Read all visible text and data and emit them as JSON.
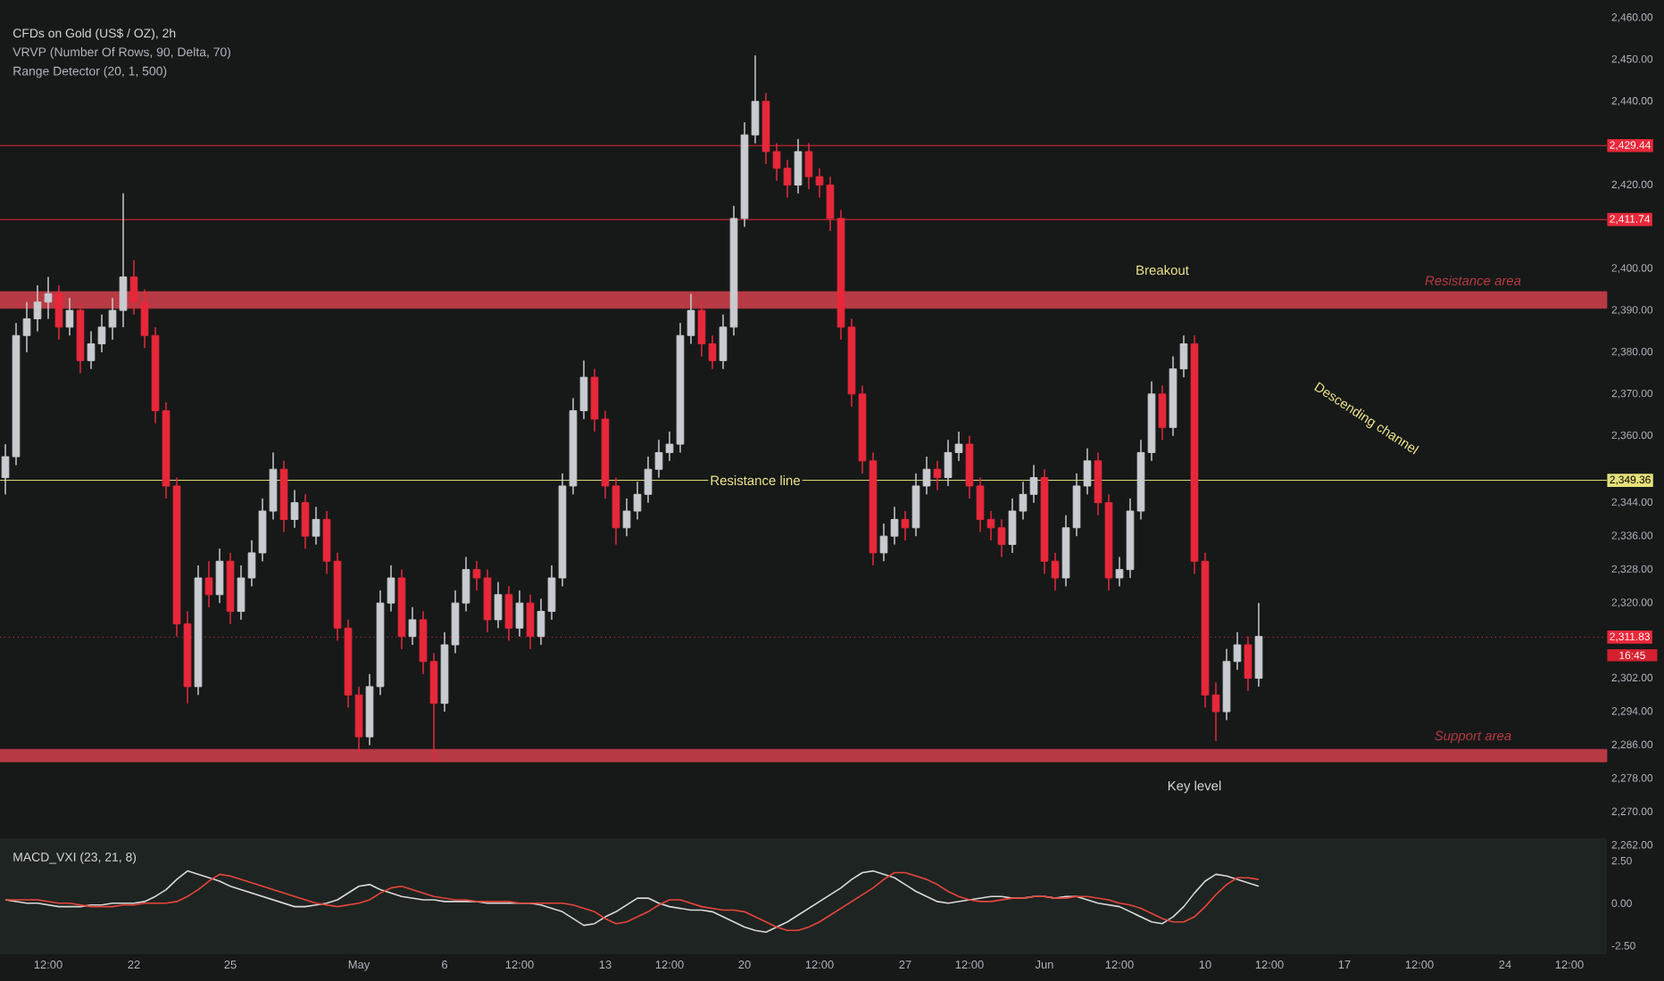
{
  "chart_data": [
    {
      "type": "candlestick",
      "title": "CFDs on Gold (US$ / OZ), 2h",
      "subtitle": "VRVP (Number Of Rows, 90, Delta, 70)",
      "categories": [
        null,
        null,
        null,
        null,
        "12:00",
        null,
        null,
        null,
        null,
        null,
        null,
        null,
        "22",
        null,
        null,
        null,
        null,
        null,
        null,
        null,
        null,
        "25",
        null,
        null,
        null,
        null,
        null,
        null,
        null,
        null,
        null,
        null,
        null,
        "May",
        null,
        null,
        null,
        null,
        null,
        null,
        null,
        "6",
        null,
        null,
        null,
        null,
        null,
        null,
        "12:00",
        null,
        null,
        null,
        null,
        null,
        null,
        null,
        "13",
        null,
        null,
        null,
        null,
        null,
        "12:00",
        null,
        null,
        null,
        null,
        null,
        null,
        "20",
        null,
        null,
        null,
        null,
        null,
        null,
        "12:00",
        null,
        null,
        null,
        null,
        null,
        null,
        null,
        "27",
        null,
        null,
        null,
        null,
        null,
        "12:00",
        null,
        null,
        null,
        null,
        null,
        null,
        "Jun",
        null,
        null,
        null,
        null,
        null,
        null,
        "12:00",
        null,
        null,
        null,
        null,
        null,
        null,
        null,
        "10",
        null,
        null,
        null,
        null,
        null,
        "12:00",
        null,
        null,
        null,
        null,
        null,
        null,
        "17",
        null,
        null,
        null,
        null,
        null,
        null,
        "12:00",
        null,
        null,
        null,
        null,
        null,
        null,
        null,
        "24",
        null,
        null,
        null,
        null,
        null,
        "12:00",
        null,
        null,
        null
      ],
      "ohlc": [
        [
          2350,
          2358,
          2346,
          2355
        ],
        [
          2355,
          2387,
          2353,
          2384
        ],
        [
          2384,
          2392,
          2380,
          2388
        ],
        [
          2388,
          2396,
          2385,
          2392
        ],
        [
          2392,
          2398,
          2388,
          2394
        ],
        [
          2394,
          2396,
          2383,
          2386
        ],
        [
          2386,
          2393,
          2384,
          2390
        ],
        [
          2390,
          2392,
          2375,
          2378
        ],
        [
          2378,
          2385,
          2376,
          2382
        ],
        [
          2382,
          2389,
          2380,
          2386
        ],
        [
          2386,
          2393,
          2383,
          2390
        ],
        [
          2390,
          2418,
          2386,
          2398
        ],
        [
          2398,
          2402,
          2389,
          2392
        ],
        [
          2392,
          2395,
          2381,
          2384
        ],
        [
          2384,
          2386,
          2363,
          2366
        ],
        [
          2366,
          2368,
          2345,
          2348
        ],
        [
          2348,
          2350,
          2312,
          2315
        ],
        [
          2315,
          2318,
          2296,
          2300
        ],
        [
          2300,
          2329,
          2298,
          2326
        ],
        [
          2326,
          2330,
          2319,
          2322
        ],
        [
          2322,
          2333,
          2320,
          2330
        ],
        [
          2330,
          2332,
          2315,
          2318
        ],
        [
          2318,
          2329,
          2316,
          2326
        ],
        [
          2326,
          2335,
          2324,
          2332
        ],
        [
          2332,
          2345,
          2330,
          2342
        ],
        [
          2342,
          2356,
          2340,
          2352
        ],
        [
          2352,
          2354,
          2337,
          2340
        ],
        [
          2340,
          2347,
          2338,
          2344
        ],
        [
          2344,
          2346,
          2333,
          2336
        ],
        [
          2336,
          2343,
          2334,
          2340
        ],
        [
          2340,
          2342,
          2327,
          2330
        ],
        [
          2330,
          2332,
          2311,
          2314
        ],
        [
          2314,
          2316,
          2295,
          2298
        ],
        [
          2298,
          2300,
          2284,
          2288
        ],
        [
          2288,
          2303,
          2286,
          2300
        ],
        [
          2300,
          2323,
          2298,
          2320
        ],
        [
          2320,
          2329,
          2318,
          2326
        ],
        [
          2326,
          2328,
          2309,
          2312
        ],
        [
          2312,
          2319,
          2310,
          2316
        ],
        [
          2316,
          2318,
          2303,
          2306
        ],
        [
          2306,
          2308,
          2282,
          2296
        ],
        [
          2296,
          2313,
          2294,
          2310
        ],
        [
          2310,
          2323,
          2308,
          2320
        ],
        [
          2320,
          2331,
          2318,
          2328
        ],
        [
          2328,
          2330,
          2323,
          2326
        ],
        [
          2326,
          2328,
          2313,
          2316
        ],
        [
          2316,
          2325,
          2314,
          2322
        ],
        [
          2322,
          2324,
          2311,
          2314
        ],
        [
          2314,
          2323,
          2312,
          2320
        ],
        [
          2320,
          2322,
          2309,
          2312
        ],
        [
          2312,
          2321,
          2310,
          2318
        ],
        [
          2318,
          2329,
          2316,
          2326
        ],
        [
          2326,
          2351,
          2324,
          2348
        ],
        [
          2348,
          2369,
          2346,
          2366
        ],
        [
          2366,
          2378,
          2364,
          2374
        ],
        [
          2374,
          2376,
          2361,
          2364
        ],
        [
          2364,
          2366,
          2345,
          2348
        ],
        [
          2348,
          2350,
          2334,
          2338
        ],
        [
          2338,
          2345,
          2336,
          2342
        ],
        [
          2342,
          2349,
          2340,
          2346
        ],
        [
          2346,
          2355,
          2344,
          2352
        ],
        [
          2352,
          2359,
          2350,
          2356
        ],
        [
          2356,
          2361,
          2354,
          2358
        ],
        [
          2358,
          2387,
          2356,
          2384
        ],
        [
          2384,
          2394,
          2382,
          2390
        ],
        [
          2390,
          2392,
          2379,
          2382
        ],
        [
          2382,
          2384,
          2376,
          2378
        ],
        [
          2378,
          2389,
          2376,
          2386
        ],
        [
          2386,
          2415,
          2384,
          2412
        ],
        [
          2412,
          2435,
          2410,
          2432
        ],
        [
          2432,
          2451,
          2430,
          2440
        ],
        [
          2440,
          2442,
          2425,
          2428
        ],
        [
          2428,
          2430,
          2421,
          2424
        ],
        [
          2424,
          2426,
          2417,
          2420
        ],
        [
          2420,
          2431,
          2418,
          2428
        ],
        [
          2428,
          2430,
          2419,
          2422
        ],
        [
          2422,
          2424,
          2417,
          2420
        ],
        [
          2420,
          2422,
          2409,
          2412
        ],
        [
          2412,
          2414,
          2383,
          2386
        ],
        [
          2386,
          2388,
          2367,
          2370
        ],
        [
          2370,
          2372,
          2351,
          2354
        ],
        [
          2354,
          2356,
          2329,
          2332
        ],
        [
          2332,
          2339,
          2330,
          2336
        ],
        [
          2336,
          2343,
          2334,
          2340
        ],
        [
          2340,
          2342,
          2335,
          2338
        ],
        [
          2338,
          2351,
          2336,
          2348
        ],
        [
          2348,
          2355,
          2346,
          2352
        ],
        [
          2352,
          2354,
          2347,
          2350
        ],
        [
          2350,
          2359,
          2348,
          2356
        ],
        [
          2356,
          2361,
          2354,
          2358
        ],
        [
          2358,
          2360,
          2345,
          2348
        ],
        [
          2348,
          2350,
          2337,
          2340
        ],
        [
          2340,
          2342,
          2335,
          2338
        ],
        [
          2338,
          2340,
          2331,
          2334
        ],
        [
          2334,
          2345,
          2332,
          2342
        ],
        [
          2342,
          2349,
          2340,
          2346
        ],
        [
          2346,
          2353,
          2344,
          2350
        ],
        [
          2350,
          2352,
          2327,
          2330
        ],
        [
          2330,
          2332,
          2323,
          2326
        ],
        [
          2326,
          2341,
          2324,
          2338
        ],
        [
          2338,
          2351,
          2336,
          2348
        ],
        [
          2348,
          2357,
          2346,
          2354
        ],
        [
          2354,
          2356,
          2341,
          2344
        ],
        [
          2344,
          2346,
          2323,
          2326
        ],
        [
          2326,
          2331,
          2324,
          2328
        ],
        [
          2328,
          2345,
          2326,
          2342
        ],
        [
          2342,
          2359,
          2340,
          2356
        ],
        [
          2356,
          2373,
          2354,
          2370
        ],
        [
          2370,
          2372,
          2359,
          2362
        ],
        [
          2362,
          2379,
          2360,
          2376
        ],
        [
          2376,
          2384,
          2374,
          2382
        ],
        [
          2382,
          2384,
          2327,
          2330
        ],
        [
          2330,
          2332,
          2295,
          2298
        ],
        [
          2298,
          2301,
          2287,
          2294
        ],
        [
          2294,
          2309,
          2292,
          2306
        ],
        [
          2306,
          2313,
          2304,
          2310
        ],
        [
          2310,
          2312,
          2299,
          2302
        ],
        [
          2302,
          2320,
          2300,
          2312
        ],
        null,
        null,
        null,
        null,
        null,
        null,
        null,
        null,
        null,
        null,
        null,
        null,
        null,
        null,
        null,
        null,
        null,
        null,
        null,
        null,
        null,
        null,
        null,
        null,
        null,
        null,
        null,
        null,
        null,
        null,
        null,
        null
      ],
      "colors": [
        "#c8cbd0",
        "#c8cbd0",
        "#c8cbd0",
        "#c8cbd0",
        "#c8cbd0",
        "#e8283a",
        "#c8cbd0",
        "#e8283a",
        "#c8cbd0",
        "#c8cbd0",
        "#c8cbd0",
        "#c8cbd0",
        "#e8283a",
        "#e8283a",
        "#e8283a",
        "#e8283a",
        "#e8283a",
        "#e8283a",
        "#c8cbd0",
        "#e8283a",
        "#c8cbd0",
        "#e8283a",
        "#c8cbd0",
        "#c8cbd0",
        "#c8cbd0",
        "#c8cbd0",
        "#e8283a",
        "#c8cbd0",
        "#e8283a",
        "#c8cbd0",
        "#e8283a",
        "#e8283a",
        "#e8283a",
        "#e8283a",
        "#c8cbd0",
        "#c8cbd0",
        "#c8cbd0",
        "#e8283a",
        "#c8cbd0",
        "#e8283a",
        "#e8283a",
        "#c8cbd0",
        "#c8cbd0",
        "#c8cbd0",
        "#e8283a",
        "#e8283a",
        "#c8cbd0",
        "#e8283a",
        "#c8cbd0",
        "#e8283a",
        "#c8cbd0",
        "#c8cbd0",
        "#c8cbd0",
        "#c8cbd0",
        "#c8cbd0",
        "#e8283a",
        "#e8283a",
        "#e8283a",
        "#c8cbd0",
        "#c8cbd0",
        "#c8cbd0",
        "#c8cbd0",
        "#c8cbd0",
        "#c8cbd0",
        "#c8cbd0",
        "#e8283a",
        "#e8283a",
        "#c8cbd0",
        "#c8cbd0",
        "#c8cbd0",
        "#c8cbd0",
        "#e8283a",
        "#e8283a",
        "#e8283a",
        "#c8cbd0",
        "#e8283a",
        "#e8283a",
        "#e8283a",
        "#e8283a",
        "#e8283a",
        "#e8283a",
        "#e8283a",
        "#c8cbd0",
        "#c8cbd0",
        "#e8283a",
        "#c8cbd0",
        "#c8cbd0",
        "#e8283a",
        "#c8cbd0",
        "#c8cbd0",
        "#e8283a",
        "#e8283a",
        "#e8283a",
        "#e8283a",
        "#c8cbd0",
        "#c8cbd0",
        "#c8cbd0",
        "#e8283a",
        "#e8283a",
        "#c8cbd0",
        "#c8cbd0",
        "#c8cbd0",
        "#e8283a",
        "#e8283a",
        "#c8cbd0",
        "#c8cbd0",
        "#c8cbd0",
        "#c8cbd0",
        "#e8283a",
        "#c8cbd0",
        "#c8cbd0",
        "#e8283a",
        "#e8283a",
        "#e8283a",
        "#c8cbd0",
        "#c8cbd0",
        "#e8283a",
        "#c8cbd0",
        null,
        null,
        null,
        null,
        null,
        null,
        null,
        null,
        null,
        null,
        null,
        null,
        null,
        null,
        null,
        null,
        null,
        null,
        null,
        null,
        null,
        null,
        null,
        null,
        null,
        null,
        null,
        null,
        null,
        null,
        null,
        null
      ],
      "ylim": [
        2262,
        2460
      ],
      "yticks": [
        {
          "value": 2460,
          "label": "2,460.00"
        },
        {
          "value": 2450,
          "label": "2,450.00"
        },
        {
          "value": 2440,
          "label": "2,440.00"
        },
        {
          "value": 2420,
          "label": "2,420.00"
        },
        {
          "value": 2400,
          "label": "2,400.00"
        },
        {
          "value": 2390,
          "label": "2,390.00"
        },
        {
          "value": 2380,
          "label": "2,380.00"
        },
        {
          "value": 2370,
          "label": "2,370.00"
        },
        {
          "value": 2360,
          "label": "2,360.00"
        },
        {
          "value": 2344,
          "label": "2,344.00"
        },
        {
          "value": 2336,
          "label": "2,336.00"
        },
        {
          "value": 2328,
          "label": "2,328.00"
        },
        {
          "value": 2320,
          "label": "2,320.00"
        },
        {
          "value": 2302,
          "label": "2,302.00"
        },
        {
          "value": 2294,
          "label": "2,294.00"
        },
        {
          "value": 2286,
          "label": "2,286.00"
        },
        {
          "value": 2278,
          "label": "2,278.00"
        },
        {
          "value": 2270,
          "label": "2,270.00"
        },
        {
          "value": 2262,
          "label": "2,262.00"
        }
      ],
      "ref_lines": [
        {
          "axis": "y",
          "value": 2349.36,
          "label": "2,349.36",
          "color": "#e6e07a",
          "line_style": "solid"
        },
        {
          "axis": "y",
          "value": 2311.83,
          "label": "2,311.83",
          "color": "#e8283a",
          "line_style": "dotted"
        },
        {
          "axis": "y",
          "value": 2429.44,
          "label": "2,429.44",
          "color": "#e8283a",
          "line_style": "solid"
        },
        {
          "axis": "y",
          "value": 2411.74,
          "label": "2,411.74",
          "color": "#e8283a",
          "line_style": "solid"
        }
      ],
      "bands": [
        {
          "axis": "y",
          "from": 2390.5,
          "to": 2394.5,
          "label": "Resistance area",
          "color": "#b83a44"
        },
        {
          "axis": "y",
          "from": 2282,
          "to": 2285,
          "label": "Support area",
          "color": "#b83a44"
        }
      ],
      "annotations": [
        "Range Detector (20, 1, 500)",
        "Breakout",
        "Resistance line",
        "Descending channel",
        "Key level",
        "16:45"
      ]
    },
    {
      "type": "line",
      "title": "MACD_VXI (23, 21, 8)",
      "tick_labels": "y",
      "categories": [
        null,
        null,
        null,
        null,
        null,
        null,
        null,
        null,
        null,
        null,
        null,
        null,
        null,
        null,
        null,
        null,
        null,
        null,
        null,
        null,
        null,
        null,
        null,
        null,
        null,
        null,
        null,
        null,
        null,
        null,
        null,
        null,
        null,
        null,
        null,
        null,
        null,
        null,
        null,
        null,
        null,
        null,
        null,
        null,
        null,
        null,
        null,
        null,
        null,
        null,
        null,
        null,
        null,
        null,
        null,
        null,
        null,
        null,
        null,
        null,
        null,
        null,
        null,
        null,
        null,
        null,
        null,
        null,
        null,
        null,
        null,
        null,
        null,
        null,
        null,
        null,
        null,
        null,
        null,
        null,
        null,
        null,
        null,
        null,
        null,
        null,
        null,
        null,
        null,
        null,
        null,
        null,
        null,
        null,
        null,
        null,
        null,
        null,
        null,
        null,
        null,
        null,
        null,
        null,
        null,
        null,
        null,
        null,
        null,
        null,
        null,
        null,
        null,
        null,
        null,
        null,
        null,
        null,
        null,
        null,
        null,
        null,
        null,
        null,
        null,
        null,
        null,
        null,
        null,
        null,
        null,
        null,
        null,
        null,
        null,
        null,
        null,
        null,
        null,
        null,
        null,
        null,
        null,
        null,
        null,
        null,
        null,
        null,
        null,
        null
      ],
      "series": [
        {
          "color": "#d9d9d9",
          "values": [
            0.2,
            0.1,
            0,
            0,
            -0.1,
            -0.2,
            -0.2,
            -0.2,
            -0.1,
            -0.1,
            0,
            0,
            0,
            0.1,
            0.4,
            0.8,
            1.4,
            1.9,
            1.7,
            1.5,
            1.3,
            1.0,
            0.8,
            0.6,
            0.4,
            0.2,
            0,
            -0.2,
            -0.2,
            -0.1,
            0,
            0.2,
            0.6,
            1.0,
            1.1,
            0.8,
            0.6,
            0.4,
            0.3,
            0.2,
            0.2,
            0.1,
            0.1,
            0.1,
            0.1,
            0,
            0,
            0,
            0,
            0,
            -0.1,
            -0.3,
            -0.5,
            -0.9,
            -1.3,
            -1.2,
            -0.8,
            -0.5,
            -0.1,
            0.3,
            0.3,
            0,
            -0.2,
            -0.3,
            -0.4,
            -0.4,
            -0.5,
            -0.8,
            -1.1,
            -1.4,
            -1.6,
            -1.7,
            -1.4,
            -1.1,
            -0.7,
            -0.3,
            0.1,
            0.5,
            0.9,
            1.4,
            1.8,
            1.9,
            1.7,
            1.5,
            1.1,
            0.7,
            0.4,
            0.1,
            0,
            0.1,
            0.2,
            0.3,
            0.4,
            0.4,
            0.3,
            0.3,
            0.4,
            0.4,
            0.3,
            0.4,
            0.4,
            0.2,
            0,
            -0.1,
            -0.2,
            -0.5,
            -0.8,
            -1.1,
            -1.2,
            -0.8,
            -0.2,
            0.6,
            1.3,
            1.7,
            1.6,
            1.4,
            1.2,
            1.0,
            null,
            null,
            null,
            null,
            null,
            null,
            null,
            null,
            null,
            null,
            null,
            null,
            null,
            null,
            null,
            null,
            null,
            null,
            null,
            null,
            null,
            null,
            null,
            null,
            null,
            null,
            null,
            null,
            null,
            null,
            null,
            null
          ]
        },
        {
          "color": "#e8453c",
          "values": [
            0.2,
            0.2,
            0.2,
            0.2,
            0.1,
            0,
            0,
            -0.1,
            -0.2,
            -0.2,
            -0.2,
            -0.1,
            -0.1,
            0,
            0,
            0,
            0.1,
            0.4,
            0.8,
            1.3,
            1.7,
            1.6,
            1.4,
            1.2,
            1.0,
            0.8,
            0.6,
            0.4,
            0.2,
            0,
            -0.1,
            -0.2,
            -0.1,
            0,
            0.2,
            0.6,
            0.9,
            1.0,
            0.8,
            0.6,
            0.4,
            0.3,
            0.2,
            0.2,
            0.1,
            0.1,
            0.1,
            0.1,
            0,
            0,
            0,
            0,
            0,
            -0.1,
            -0.3,
            -0.5,
            -0.9,
            -1.2,
            -1.1,
            -0.8,
            -0.5,
            -0.1,
            0.2,
            0.2,
            0,
            -0.2,
            -0.3,
            -0.4,
            -0.4,
            -0.5,
            -0.8,
            -1.1,
            -1.4,
            -1.6,
            -1.6,
            -1.4,
            -1.1,
            -0.7,
            -0.3,
            0.1,
            0.5,
            0.9,
            1.4,
            1.8,
            1.8,
            1.6,
            1.4,
            1.1,
            0.7,
            0.4,
            0.2,
            0.1,
            0.1,
            0.2,
            0.3,
            0.3,
            0.4,
            0.4,
            0.3,
            0.3,
            0.4,
            0.4,
            0.3,
            0.2,
            0,
            -0.1,
            -0.3,
            -0.6,
            -0.9,
            -1.1,
            -1.1,
            -0.8,
            -0.2,
            0.5,
            1.1,
            1.5,
            1.5,
            1.4,
            null,
            null,
            null,
            null,
            null,
            null,
            null,
            null,
            null,
            null,
            null,
            null,
            null,
            null,
            null,
            null,
            null,
            null,
            null,
            null,
            null,
            null,
            null,
            null,
            null,
            null,
            null,
            null,
            null,
            null,
            null,
            null
          ]
        }
      ],
      "ylim": [
        -3,
        3.4
      ],
      "yticks": [
        {
          "value": 2.5,
          "label": "2.50"
        },
        {
          "value": 0,
          "label": "0.00"
        },
        {
          "value": -2.5,
          "label": "-2.50"
        }
      ]
    }
  ]
}
